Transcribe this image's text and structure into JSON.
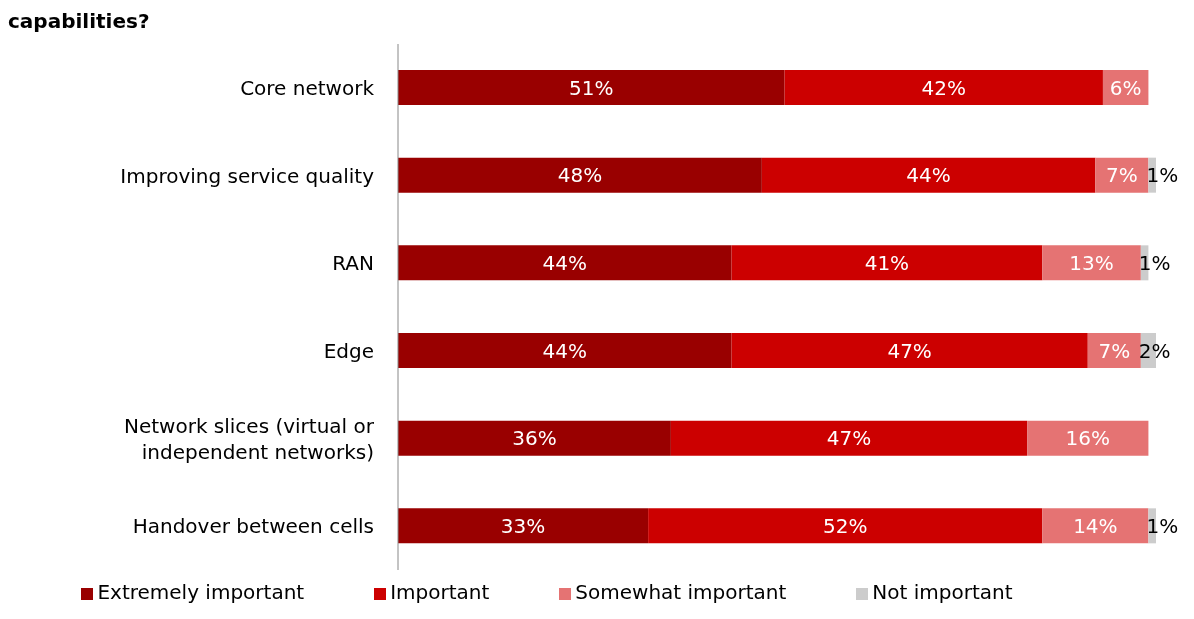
{
  "chart_data": {
    "type": "bar",
    "orientation": "horizontal",
    "stacked": true,
    "title": "capabilities?",
    "categories": [
      "Core network",
      "Improving service quality",
      "RAN",
      "Edge",
      "Network slices (virtual or independent networks)",
      "Handover between cells"
    ],
    "series": [
      {
        "name": "Extremely important",
        "color": "#990000",
        "values": [
          51,
          48,
          44,
          44,
          36,
          33
        ],
        "value_labels": [
          "51%",
          "48%",
          "44%",
          "44%",
          "36%",
          "33%"
        ]
      },
      {
        "name": "Important",
        "color": "#cc0000",
        "values": [
          42,
          44,
          41,
          47,
          47,
          52
        ],
        "value_labels": [
          "42%",
          "44%",
          "41%",
          "47%",
          "47%",
          "52%"
        ]
      },
      {
        "name": "Somewhat important",
        "color": "#e57373",
        "values": [
          6,
          7,
          13,
          7,
          16,
          14
        ],
        "value_labels": [
          "6%",
          "7%",
          "13%",
          "7%",
          "16%",
          "14%"
        ]
      },
      {
        "name": "Not important",
        "color": "#cccccc",
        "values": [
          null,
          1,
          1,
          2,
          null,
          1
        ],
        "value_labels": [
          null,
          "1%",
          "1%",
          "2%",
          null,
          "1%"
        ]
      }
    ],
    "legend": "bottom"
  }
}
